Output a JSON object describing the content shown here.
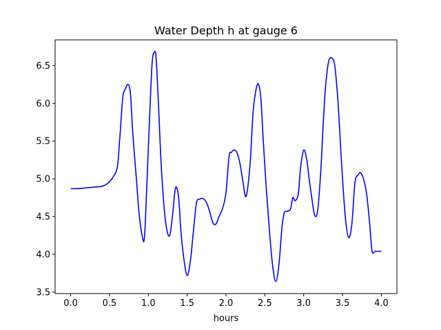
{
  "chart_data": {
    "type": "line",
    "title": "Water Depth h at gauge 6",
    "xlabel": "hours",
    "ylabel": "",
    "xlim": [
      -0.2,
      4.2
    ],
    "ylim": [
      3.48,
      6.84
    ],
    "xticks": [
      0.0,
      0.5,
      1.0,
      1.5,
      2.0,
      2.5,
      3.0,
      3.5,
      4.0
    ],
    "xtick_labels": [
      "0.0",
      "0.5",
      "1.0",
      "1.5",
      "2.0",
      "2.5",
      "3.0",
      "3.5",
      "4.0"
    ],
    "yticks": [
      3.5,
      4.0,
      4.5,
      5.0,
      5.5,
      6.0,
      6.5
    ],
    "ytick_labels": [
      "3.5",
      "4.0",
      "4.5",
      "5.0",
      "5.5",
      "6.0",
      "6.5"
    ],
    "grid": false,
    "legend": "none",
    "series": [
      {
        "color": "#0000ff",
        "x": [
          0.0,
          0.1,
          0.2,
          0.3,
          0.4,
          0.45,
          0.5,
          0.55,
          0.6,
          0.63,
          0.67,
          0.7,
          0.74,
          0.77,
          0.8,
          0.85,
          0.88,
          0.92,
          0.95,
          0.98,
          1.02,
          1.05,
          1.08,
          1.1,
          1.13,
          1.17,
          1.22,
          1.27,
          1.31,
          1.35,
          1.39,
          1.42,
          1.46,
          1.5,
          1.54,
          1.58,
          1.62,
          1.66,
          1.7,
          1.74,
          1.78,
          1.83,
          1.87,
          1.91,
          1.96,
          2.0,
          2.04,
          2.07,
          2.1,
          2.14,
          2.18,
          2.22,
          2.26,
          2.31,
          2.35,
          2.39,
          2.42,
          2.45,
          2.48,
          2.52,
          2.56,
          2.6,
          2.64,
          2.68,
          2.72,
          2.75,
          2.79,
          2.83,
          2.86,
          2.89,
          2.93,
          2.96,
          3.0,
          3.04,
          3.07,
          3.1,
          3.14,
          3.18,
          3.22,
          3.25,
          3.28,
          3.32,
          3.36,
          3.4,
          3.44,
          3.46,
          3.5,
          3.54,
          3.58,
          3.62,
          3.66,
          3.7,
          3.73,
          3.77,
          3.81,
          3.85,
          3.88,
          3.92,
          3.96,
          4.0
        ],
        "y": [
          4.87,
          4.87,
          4.88,
          4.89,
          4.9,
          4.92,
          4.96,
          5.03,
          5.15,
          5.5,
          6.07,
          6.18,
          6.25,
          6.12,
          5.6,
          4.95,
          4.55,
          4.25,
          4.22,
          4.9,
          5.9,
          6.55,
          6.68,
          6.6,
          6.0,
          5.1,
          4.45,
          4.24,
          4.5,
          4.88,
          4.75,
          4.3,
          3.92,
          3.72,
          3.9,
          4.3,
          4.68,
          4.73,
          4.74,
          4.7,
          4.6,
          4.42,
          4.4,
          4.5,
          4.62,
          4.82,
          5.3,
          5.35,
          5.38,
          5.35,
          5.2,
          4.95,
          4.77,
          5.2,
          5.9,
          6.2,
          6.25,
          6.05,
          5.5,
          4.85,
          4.3,
          3.85,
          3.64,
          3.85,
          4.35,
          4.55,
          4.57,
          4.6,
          4.75,
          4.71,
          4.8,
          5.15,
          5.38,
          5.25,
          5.0,
          4.78,
          4.52,
          4.58,
          5.1,
          5.7,
          6.2,
          6.55,
          6.6,
          6.5,
          6.05,
          5.7,
          5.0,
          4.45,
          4.22,
          4.4,
          4.95,
          5.05,
          5.08,
          5.0,
          4.8,
          4.4,
          4.04,
          4.04,
          4.04,
          4.04
        ]
      }
    ]
  }
}
